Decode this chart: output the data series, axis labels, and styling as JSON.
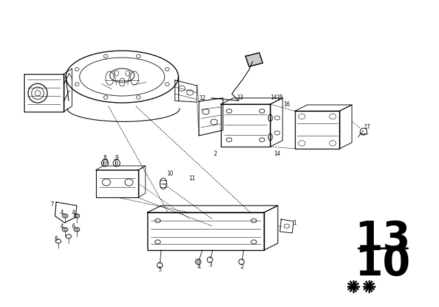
{
  "background_color": "#ffffff",
  "line_color": "#000000",
  "fig_width": 6.4,
  "fig_height": 4.48,
  "dpi": 100,
  "page_top": "13",
  "page_bottom": "10"
}
